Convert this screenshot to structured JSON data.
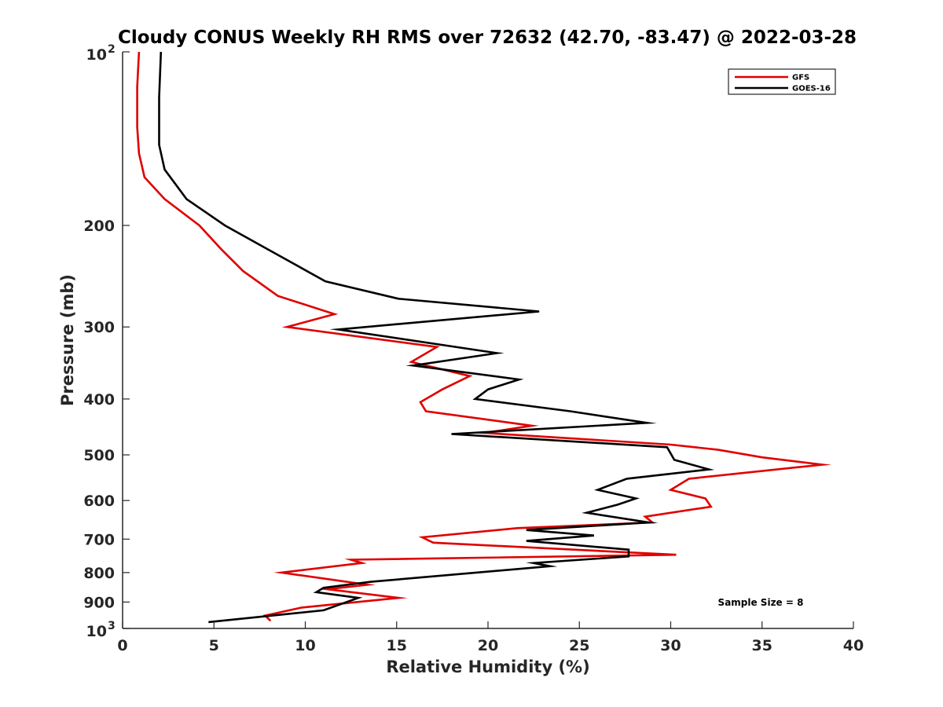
{
  "chart_data": {
    "type": "line",
    "title": "Cloudy CONUS Weekly RH RMS over 72632 (42.70, -83.47) @ 2022-03-28",
    "xlabel": "Relative Humidity (%)",
    "ylabel": "Pressure (mb)",
    "xlim": [
      0,
      40
    ],
    "ylim": [
      100,
      1000
    ],
    "yscale": "log",
    "y_reversed": true,
    "grid": false,
    "legend_position": "top-right",
    "x_ticks": [
      "0",
      "5",
      "10",
      "15",
      "20",
      "25",
      "30",
      "35",
      "40"
    ],
    "x_tick_values": [
      0,
      5,
      10,
      15,
      20,
      25,
      30,
      35,
      40
    ],
    "y_ticks": [
      {
        "value": 100,
        "base": "10",
        "exp": "2"
      },
      {
        "value": 200,
        "label": "200"
      },
      {
        "value": 300,
        "label": "300"
      },
      {
        "value": 400,
        "label": "400"
      },
      {
        "value": 500,
        "label": "500"
      },
      {
        "value": 600,
        "label": "600"
      },
      {
        "value": 700,
        "label": "700"
      },
      {
        "value": 800,
        "label": "800"
      },
      {
        "value": 900,
        "label": "900"
      },
      {
        "value": 1000,
        "base": "10",
        "exp": "3"
      }
    ],
    "series": [
      {
        "name": "GFS",
        "color": "#e00000",
        "points": [
          [
            0.9,
            100
          ],
          [
            0.8,
            115
          ],
          [
            0.8,
            135
          ],
          [
            0.9,
            150
          ],
          [
            1.2,
            165
          ],
          [
            2.3,
            180
          ],
          [
            4.2,
            200
          ],
          [
            5.4,
            220
          ],
          [
            6.6,
            240
          ],
          [
            8.5,
            265
          ],
          [
            11.6,
            285
          ],
          [
            9.0,
            300
          ],
          [
            17.2,
            325
          ],
          [
            15.8,
            345
          ],
          [
            19.0,
            365
          ],
          [
            17.5,
            385
          ],
          [
            16.3,
            405
          ],
          [
            16.6,
            420
          ],
          [
            22.4,
            445
          ],
          [
            19.8,
            458
          ],
          [
            30.0,
            480
          ],
          [
            32.6,
            490
          ],
          [
            35.0,
            505
          ],
          [
            38.3,
            520
          ],
          [
            31.0,
            550
          ],
          [
            30.0,
            575
          ],
          [
            31.9,
            595
          ],
          [
            32.2,
            615
          ],
          [
            28.6,
            640
          ],
          [
            29.0,
            655
          ],
          [
            21.6,
            670
          ],
          [
            16.4,
            695
          ],
          [
            17.0,
            710
          ],
          [
            30.3,
            745
          ],
          [
            12.5,
            760
          ],
          [
            13.1,
            770
          ],
          [
            8.7,
            800
          ],
          [
            13.4,
            840
          ],
          [
            11.2,
            855
          ],
          [
            15.1,
            885
          ],
          [
            9.8,
            920
          ],
          [
            7.8,
            950
          ],
          [
            8.1,
            970
          ]
        ]
      },
      {
        "name": "GOES-16",
        "color": "#000000",
        "points": [
          [
            2.1,
            100
          ],
          [
            2.0,
            120
          ],
          [
            2.0,
            145
          ],
          [
            2.3,
            160
          ],
          [
            3.5,
            180
          ],
          [
            5.6,
            200
          ],
          [
            8.5,
            225
          ],
          [
            11.1,
            250
          ],
          [
            15.1,
            268
          ],
          [
            22.8,
            282
          ],
          [
            11.8,
            303
          ],
          [
            20.5,
            333
          ],
          [
            15.9,
            350
          ],
          [
            21.7,
            370
          ],
          [
            20.0,
            385
          ],
          [
            19.3,
            400
          ],
          [
            24.5,
            420
          ],
          [
            28.7,
            440
          ],
          [
            18.0,
            460
          ],
          [
            29.8,
            485
          ],
          [
            30.2,
            510
          ],
          [
            32.1,
            530
          ],
          [
            27.6,
            550
          ],
          [
            26.0,
            575
          ],
          [
            28.1,
            595
          ],
          [
            27.1,
            610
          ],
          [
            25.4,
            630
          ],
          [
            28.8,
            655
          ],
          [
            22.1,
            675
          ],
          [
            25.8,
            690
          ],
          [
            22.1,
            705
          ],
          [
            27.7,
            730
          ],
          [
            27.7,
            750
          ],
          [
            22.5,
            770
          ],
          [
            23.4,
            780
          ],
          [
            13.6,
            830
          ],
          [
            11.0,
            850
          ],
          [
            10.6,
            865
          ],
          [
            12.9,
            885
          ],
          [
            11.0,
            930
          ],
          [
            4.7,
            975
          ]
        ]
      }
    ],
    "annotation": "Sample Size = 8"
  }
}
